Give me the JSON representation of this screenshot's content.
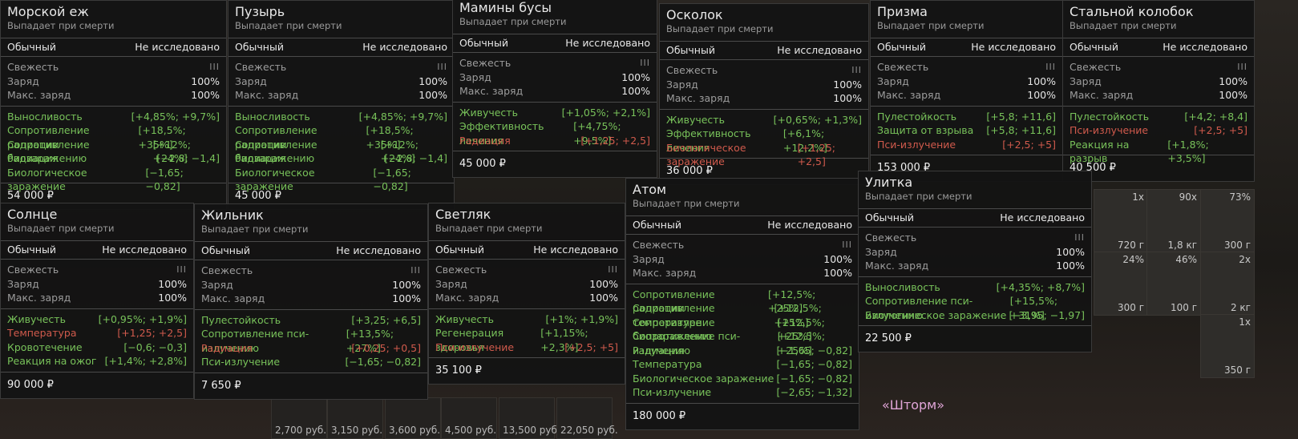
{
  "common": {
    "subtitle": "Выпадает при смерти",
    "rarity": "Обычный",
    "research": "Не исследовано",
    "freshness": "Свежесть",
    "freshness_bars": "III",
    "charge": "Заряд",
    "max_charge": "Макс. заряд",
    "charge_value": "100%",
    "max_charge_value": "100%"
  },
  "cards": [
    {
      "title": "Морской еж",
      "price": "54 000 ₽",
      "effects": [
        {
          "name": "Выносливость",
          "value": "[+4,85%; +9,7%]",
          "tone": "good"
        },
        {
          "name": "Сопротивление радиации",
          "value": "[+18,5%; +35%]",
          "tone": "good"
        },
        {
          "name": "Сопротивление биозаражению",
          "value": "[+12%; +24%]",
          "tone": "good"
        },
        {
          "name": "Радиация",
          "value": "[−2,8; −1,4]",
          "tone": "good"
        },
        {
          "name": "Биологическое заражение",
          "value": "[−1,65; −0,82]",
          "tone": "good"
        }
      ]
    },
    {
      "title": "Пузырь",
      "price": "45 000 ₽",
      "effects": [
        {
          "name": "Выносливость",
          "value": "[+4,85%; +9,7%]",
          "tone": "good"
        },
        {
          "name": "Сопротивление радиации",
          "value": "[+18,5%; +35%]",
          "tone": "good"
        },
        {
          "name": "Сопротивление биозаражению",
          "value": "[+12%; +24%]",
          "tone": "good"
        },
        {
          "name": "Радиация",
          "value": "[−2,8; −1,4]",
          "tone": "good"
        },
        {
          "name": "Биологическое заражение",
          "value": "[−1,65; −0,82]",
          "tone": "good"
        }
      ]
    },
    {
      "title": "Мамины бусы",
      "price": "45 000 ₽",
      "effects": [
        {
          "name": "Живучесть",
          "value": "[+1,05%; +2,1%]",
          "tone": "good"
        },
        {
          "name": "Эффективность лечения",
          "value": "[+4,75%; +9,5%]",
          "tone": "good"
        },
        {
          "name": "Радиация",
          "value": "[+1,25; +2,5]",
          "tone": "bad"
        }
      ]
    },
    {
      "title": "Осколок",
      "price": "36 000 ₽",
      "effects": [
        {
          "name": "Живучесть",
          "value": "[+0,65%; +1,3%]",
          "tone": "good"
        },
        {
          "name": "Эффективность лечения",
          "value": "[+6,1%; +12,2%]",
          "tone": "good"
        },
        {
          "name": "Биологическое заражение",
          "value": "[+1,25; +2,5]",
          "tone": "bad"
        }
      ]
    },
    {
      "title": "Призма",
      "price": "153 000 ₽",
      "effects": [
        {
          "name": "Пулестойкость",
          "value": "[+5,8; +11,6]",
          "tone": "good"
        },
        {
          "name": "Защита от взрыва",
          "value": "[+5,8; +11,6]",
          "tone": "good"
        },
        {
          "name": "Пси-излучение",
          "value": "[+2,5; +5]",
          "tone": "bad"
        }
      ]
    },
    {
      "title": "Стальной колобок",
      "price": "40 500 ₽",
      "effects": [
        {
          "name": "Пулестойкость",
          "value": "[+4,2; +8,4]",
          "tone": "good"
        },
        {
          "name": "Пси-излучение",
          "value": "[+2,5; +5]",
          "tone": "bad"
        },
        {
          "name": "Реакция на разрыв",
          "value": "[+1,8%; +3,5%]",
          "tone": "good"
        }
      ]
    },
    {
      "title": "Солнце",
      "price": "90 000 ₽",
      "effects": [
        {
          "name": "Живучесть",
          "value": "[+0,95%; +1,9%]",
          "tone": "good"
        },
        {
          "name": "Температура",
          "value": "[+1,25; +2,5]",
          "tone": "bad"
        },
        {
          "name": "Кровотечение",
          "value": "[−0,6; −0,3]",
          "tone": "good"
        },
        {
          "name": "Реакция на ожог",
          "value": "[+1,4%; +2,8%]",
          "tone": "good"
        }
      ]
    },
    {
      "title": "Жильник",
      "price": "7 650 ₽",
      "effects": [
        {
          "name": "Пулестойкость",
          "value": "[+3,25; +6,5]",
          "tone": "good"
        },
        {
          "name": "Сопротивление пси-излучению",
          "value": "[+13,5%; +27%]",
          "tone": "good"
        },
        {
          "name": "Радиация",
          "value": "[+0,25; +0,5]",
          "tone": "bad"
        },
        {
          "name": "Пси-излучение",
          "value": "[−1,65; −0,82]",
          "tone": "good"
        }
      ]
    },
    {
      "title": "Светляк",
      "price": "35 100 ₽",
      "effects": [
        {
          "name": "Живучесть",
          "value": "[+1%; +1,9%]",
          "tone": "good"
        },
        {
          "name": "Регенерация здоровья",
          "value": "[+1,15%; +2,3%]",
          "tone": "good"
        },
        {
          "name": "Пси-излучение",
          "value": "[+2,5; +5]",
          "tone": "bad"
        }
      ]
    },
    {
      "title": "Атом",
      "price": "180 000 ₽",
      "effects": [
        {
          "name": "Сопротивление радиации",
          "value": "[+12,5%; +25%]",
          "tone": "good"
        },
        {
          "name": "Сопротивление температуре",
          "value": "[+12,5%; +25%]",
          "tone": "good"
        },
        {
          "name": "Сопротивление биозаражению",
          "value": "[+12,5%; +25%]",
          "tone": "good"
        },
        {
          "name": "Сопротивление пси-излучению",
          "value": "[+12,5%; +25%]",
          "tone": "good"
        },
        {
          "name": "Радиация",
          "value": "[−1,65; −0,82]",
          "tone": "good"
        },
        {
          "name": "Температура",
          "value": "[−1,65; −0,82]",
          "tone": "good"
        },
        {
          "name": "Биологическое заражение",
          "value": "[−1,65; −0,82]",
          "tone": "good"
        },
        {
          "name": "Пси-излучение",
          "value": "[−2,65; −1,32]",
          "tone": "good"
        }
      ]
    },
    {
      "title": "Улитка",
      "price": "22 500 ₽",
      "effects": [
        {
          "name": "Выносливость",
          "value": "[+4,35%; +8,7%]",
          "tone": "good"
        },
        {
          "name": "Сопротивление пси-излучению",
          "value": "[+15,5%; +31%]",
          "tone": "good"
        },
        {
          "name": "Биологическое заражение",
          "value": "[−3,95; −1,97]",
          "tone": "good"
        }
      ]
    }
  ],
  "inventory": [
    {
      "count": "1x",
      "label": "720 г"
    },
    {
      "count": "90x",
      "label": "1,8 кг"
    },
    {
      "count": "73%",
      "label": "300 г"
    },
    {
      "count": "24%",
      "label": "300 г"
    },
    {
      "count": "46%",
      "label": "100 г"
    },
    {
      "count": "2x",
      "label": "2 кг"
    },
    {
      "count": "1x",
      "label": "350 г"
    }
  ],
  "market_prices": [
    "2,700 руб.",
    "3,150 руб.",
    "3,600 руб.",
    "4,500 руб.",
    "13,500 руб.",
    "22,050 руб."
  ],
  "storm_text": "«Шторм»"
}
